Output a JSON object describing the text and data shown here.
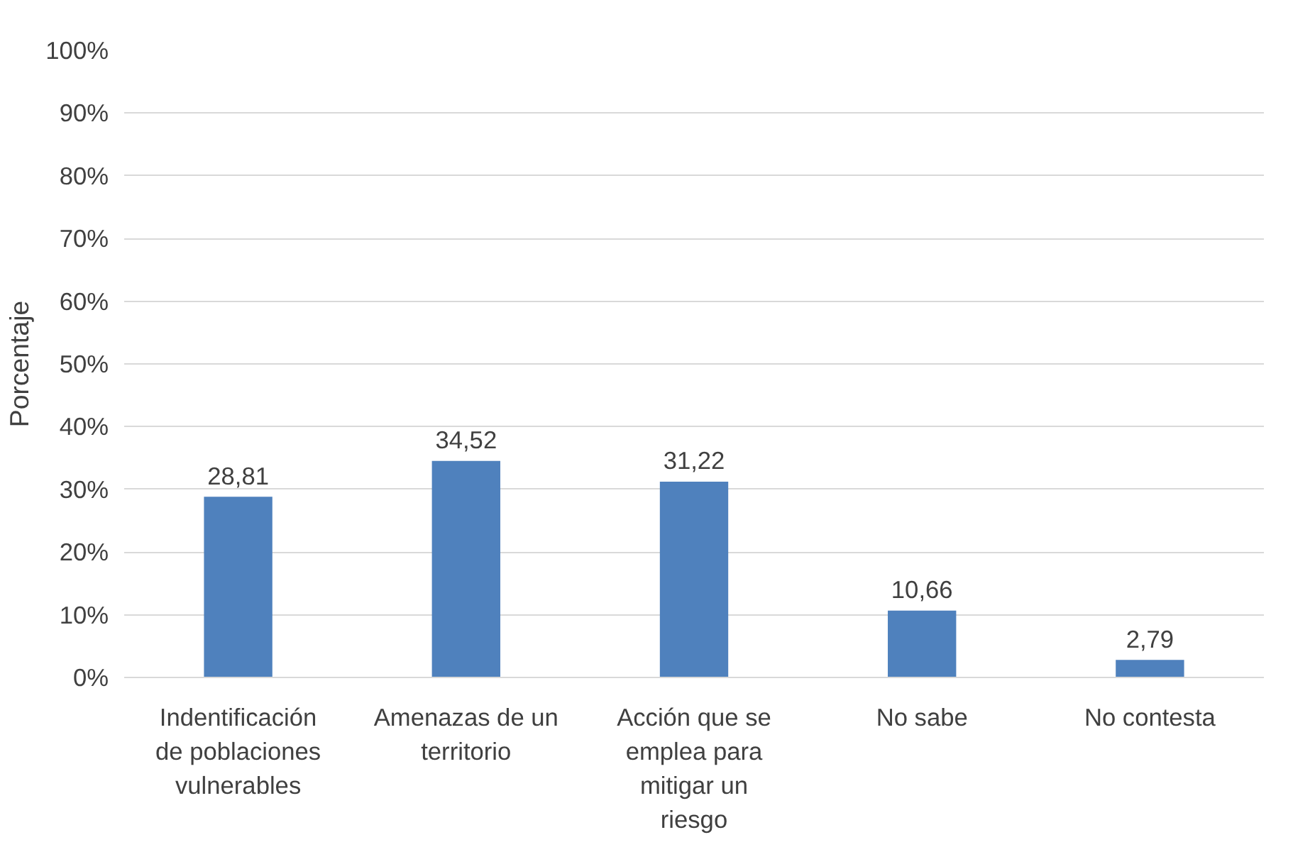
{
  "chart_data": {
    "type": "bar",
    "ylabel": "Porcentaje",
    "categories": [
      "Indentificación de poblaciones vulnerables",
      "Amenazas de un territorio",
      "Acción que se emplea para mitigar un riesgo",
      "No sabe",
      "No contesta"
    ],
    "values": [
      28.81,
      34.52,
      31.22,
      10.66,
      2.79
    ],
    "value_labels": [
      "28,81",
      "34,52",
      "31,22",
      "10,66",
      "2,79"
    ],
    "color": "#4f81bd",
    "ylim": [
      0,
      100
    ],
    "yticks": [
      {
        "value": 0,
        "label": "0%"
      },
      {
        "value": 10,
        "label": "10%"
      },
      {
        "value": 20,
        "label": "20%"
      },
      {
        "value": 30,
        "label": "30%"
      },
      {
        "value": 40,
        "label": "40%"
      },
      {
        "value": 50,
        "label": "50%"
      },
      {
        "value": 60,
        "label": "60%"
      },
      {
        "value": 70,
        "label": "70%"
      },
      {
        "value": 80,
        "label": "80%"
      },
      {
        "value": 90,
        "label": "90%"
      },
      {
        "value": 100,
        "label": "100%"
      }
    ],
    "grid": "y"
  }
}
